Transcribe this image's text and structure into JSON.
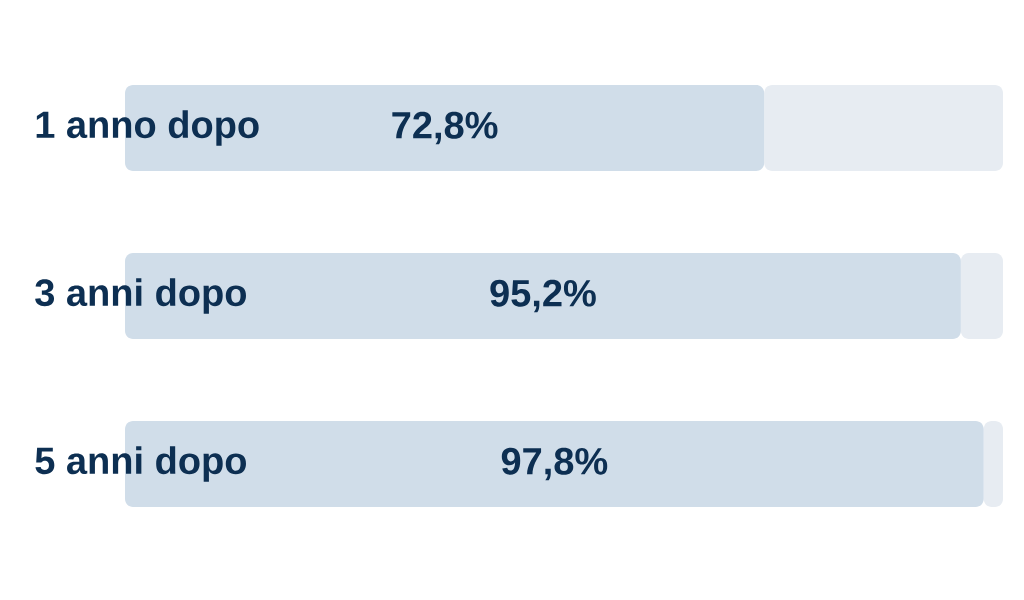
{
  "chart_data": {
    "type": "bar",
    "orientation": "horizontal",
    "stacked": true,
    "categories": [
      "1 anno dopo",
      "3 anni dopo",
      "5 anni dopo"
    ],
    "xlim": [
      0,
      100
    ],
    "tick_labels": "y",
    "series": [
      {
        "color": "#d0dde9",
        "values": [
          72.8,
          95.2,
          97.8
        ],
        "value_labels": [
          "72,8%",
          "95,2%",
          "97,8%"
        ]
      },
      {
        "color": "#e7ecf2",
        "values": [
          27.2,
          4.8,
          2.2
        ]
      }
    ]
  }
}
